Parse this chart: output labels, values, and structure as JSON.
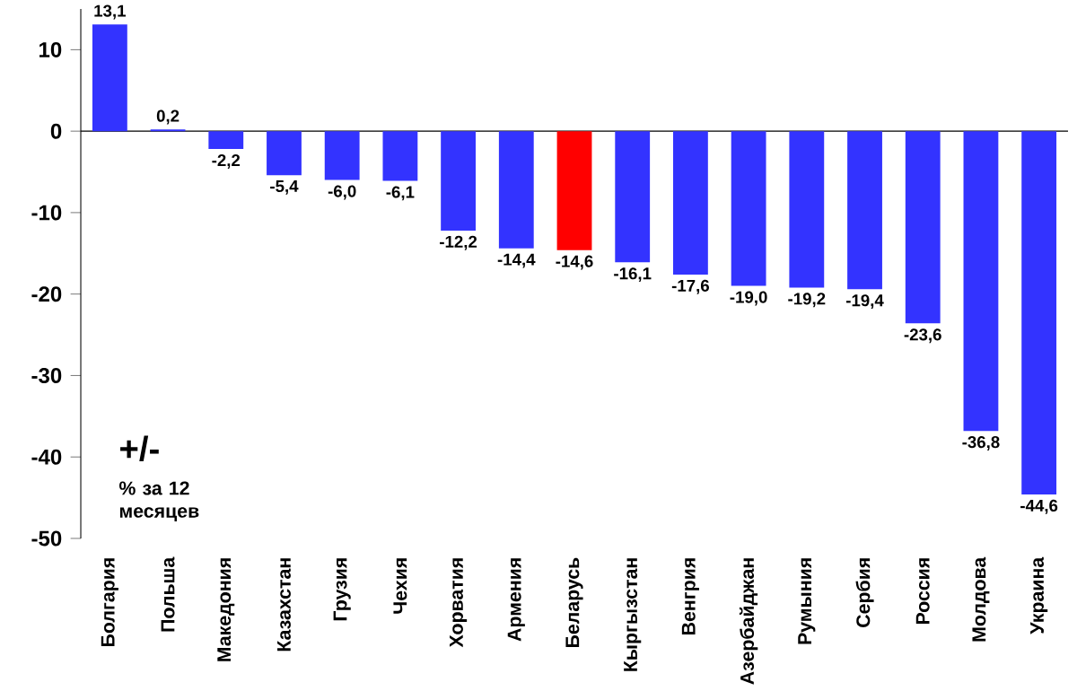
{
  "chart_data": {
    "type": "bar",
    "categories": [
      "Болгария",
      "Польша",
      "Македония",
      "Казахстан",
      "Грузия",
      "Чехия",
      "Хорватия",
      "Армения",
      "Беларусь",
      "Кыргызстан",
      "Венгрия",
      "Азербайджан",
      "Румыния",
      "Сербия",
      "Россия",
      "Молдова",
      "Украина"
    ],
    "values": [
      13.1,
      0.2,
      -2.2,
      -5.4,
      -6.0,
      -6.1,
      -12.2,
      -14.4,
      -14.6,
      -16.1,
      -17.6,
      -19.0,
      -19.2,
      -19.4,
      -23.6,
      -36.8,
      -44.6
    ],
    "value_labels": [
      "13,1",
      "0,2",
      "-2,2",
      "-5,4",
      "-6,0",
      "-6,1",
      "-12,2",
      "-14,4",
      "-14,6",
      "-16,1",
      "-17,6",
      "-19,0",
      "-19,2",
      "-19,4",
      "-23,6",
      "-36,8",
      "-44,6"
    ],
    "colors": [
      "#3333ff",
      "#3333ff",
      "#3333ff",
      "#3333ff",
      "#3333ff",
      "#3333ff",
      "#3333ff",
      "#3333ff",
      "#ff0000",
      "#3333ff",
      "#3333ff",
      "#3333ff",
      "#3333ff",
      "#3333ff",
      "#3333ff",
      "#3333ff",
      "#3333ff"
    ],
    "ylim": [
      -50,
      15
    ],
    "yticks": [
      -50,
      -40,
      -30,
      -20,
      -10,
      0,
      10
    ],
    "annotations": [
      "+/-",
      "% за 12 месяцев"
    ]
  }
}
